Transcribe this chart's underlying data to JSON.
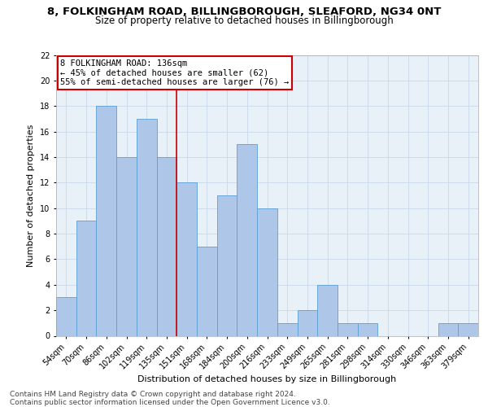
{
  "title_line1": "8, FOLKINGHAM ROAD, BILLINGBOROUGH, SLEAFORD, NG34 0NT",
  "title_line2": "Size of property relative to detached houses in Billingborough",
  "xlabel": "Distribution of detached houses by size in Billingborough",
  "ylabel": "Number of detached properties",
  "categories": [
    "54sqm",
    "70sqm",
    "86sqm",
    "102sqm",
    "119sqm",
    "135sqm",
    "151sqm",
    "168sqm",
    "184sqm",
    "200sqm",
    "216sqm",
    "233sqm",
    "249sqm",
    "265sqm",
    "281sqm",
    "298sqm",
    "314sqm",
    "330sqm",
    "346sqm",
    "363sqm",
    "379sqm"
  ],
  "values": [
    3,
    9,
    18,
    14,
    17,
    14,
    12,
    7,
    11,
    15,
    10,
    1,
    2,
    4,
    1,
    1,
    0,
    0,
    0,
    1,
    1
  ],
  "bar_color": "#aec6e8",
  "bar_edge_color": "#5a9fd4",
  "reference_line_x": 5.5,
  "reference_line_label": "8 FOLKINGHAM ROAD: 136sqm",
  "annotation_line1": "← 45% of detached houses are smaller (62)",
  "annotation_line2": "55% of semi-detached houses are larger (76) →",
  "annotation_box_color": "#ffffff",
  "annotation_box_edge": "#cc0000",
  "ref_line_color": "#cc0000",
  "ylim": [
    0,
    22
  ],
  "yticks": [
    0,
    2,
    4,
    6,
    8,
    10,
    12,
    14,
    16,
    18,
    20,
    22
  ],
  "grid_color": "#c8d8e8",
  "bg_color": "#e8f0f8",
  "footer": "Contains HM Land Registry data © Crown copyright and database right 2024.\nContains public sector information licensed under the Open Government Licence v3.0.",
  "title_fontsize": 9.5,
  "subtitle_fontsize": 8.5,
  "axis_label_fontsize": 8,
  "tick_fontsize": 7,
  "footer_fontsize": 6.5,
  "annotation_fontsize": 7.5
}
